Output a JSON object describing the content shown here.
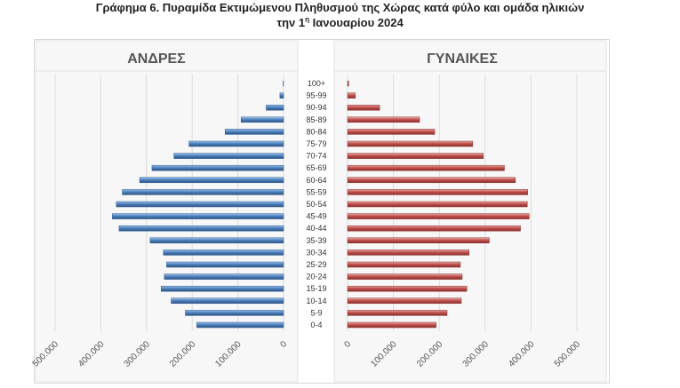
{
  "title_line1": "Γράφημα 6. Πυραμίδα Εκτιμώμενου Πληθυσμού της Χώρας κατά φύλο και ομάδα ηλικιών",
  "title_line2_pre": "την 1",
  "title_line2_sup": "η",
  "title_line2_post": " Ιανουαρίου 2024",
  "chart_data": {
    "type": "bar",
    "orientation": "horizontal-population-pyramid",
    "categories": [
      "100+",
      "95-99",
      "90-94",
      "85-89",
      "80-84",
      "75-79",
      "70-74",
      "65-69",
      "60-64",
      "55-59",
      "50-54",
      "45-49",
      "40-44",
      "35-39",
      "30-34",
      "25-29",
      "20-24",
      "15-19",
      "10-14",
      "5-9",
      "0-4"
    ],
    "series": [
      {
        "name": "ΑΝΔΡΕΣ",
        "color": "#4f81bd",
        "values": [
          800,
          8000,
          38000,
          93000,
          128000,
          207000,
          240000,
          288000,
          315000,
          353000,
          366000,
          375000,
          360000,
          292000,
          263000,
          256000,
          261000,
          268000,
          246000,
          215000,
          190000
        ]
      },
      {
        "name": "ΓΥΝΑΙΚΕΣ",
        "color": "#c0504d",
        "values": [
          2500,
          17000,
          70000,
          157000,
          190000,
          273000,
          296000,
          342000,
          366000,
          393000,
          392000,
          396000,
          377000,
          309000,
          265000,
          246000,
          250000,
          260000,
          248000,
          217000,
          193000
        ]
      }
    ],
    "xlim": [
      0,
      500000
    ],
    "ticks": [
      "500.000",
      "400.000",
      "300.000",
      "200.000",
      "100.000",
      "0"
    ],
    "ticks_right": [
      "0",
      "100.000",
      "200.000",
      "300.000",
      "400.000",
      "500.000"
    ],
    "grid": true
  }
}
